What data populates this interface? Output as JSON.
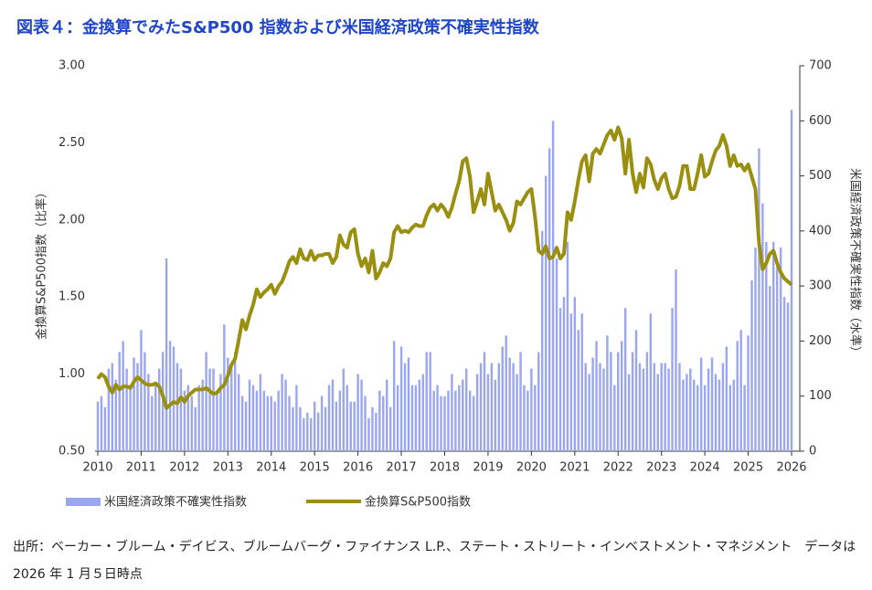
{
  "chart_data": {
    "type": "combo",
    "title": "図表４：金換算でみたS&P500 指数および米国経済政策不確実性指数",
    "ylabel": "金換算S&P500指数（比率）",
    "y2label": "米国経済政策不確実性指数（水準）",
    "source": "出所：ベーカー・ブルーム・デイビス、ブルームバーグ・ファイナンス L.P.、ステート・ストリート・インベストメント・マネジメント　データは 2026 年 1 月５日時点",
    "legend": "bottom",
    "categories": [
      "2010",
      null,
      null,
      null,
      null,
      null,
      null,
      null,
      null,
      null,
      null,
      null,
      "2011",
      null,
      null,
      null,
      null,
      null,
      null,
      null,
      null,
      null,
      null,
      null,
      "2012",
      null,
      null,
      null,
      null,
      null,
      null,
      null,
      null,
      null,
      null,
      null,
      "2013",
      null,
      null,
      null,
      null,
      null,
      null,
      null,
      null,
      null,
      null,
      null,
      "2014",
      null,
      null,
      null,
      null,
      null,
      null,
      null,
      null,
      null,
      null,
      null,
      "2015",
      null,
      null,
      null,
      null,
      null,
      null,
      null,
      null,
      null,
      null,
      null,
      "2016",
      null,
      null,
      null,
      null,
      null,
      null,
      null,
      null,
      null,
      null,
      null,
      "2017",
      null,
      null,
      null,
      null,
      null,
      null,
      null,
      null,
      null,
      null,
      null,
      "2018",
      null,
      null,
      null,
      null,
      null,
      null,
      null,
      null,
      null,
      null,
      null,
      "2019",
      null,
      null,
      null,
      null,
      null,
      null,
      null,
      null,
      null,
      null,
      null,
      "2020",
      null,
      null,
      null,
      null,
      null,
      null,
      null,
      null,
      null,
      null,
      null,
      "2021",
      null,
      null,
      null,
      null,
      null,
      null,
      null,
      null,
      null,
      null,
      null,
      "2022",
      null,
      null,
      null,
      null,
      null,
      null,
      null,
      null,
      null,
      null,
      null,
      "2023",
      null,
      null,
      null,
      null,
      null,
      null,
      null,
      null,
      null,
      null,
      null,
      "2024",
      null,
      null,
      null,
      null,
      null,
      null,
      null,
      null,
      null,
      null,
      null,
      "2025",
      null,
      null,
      null,
      null,
      null,
      null,
      null,
      null,
      null,
      null,
      null,
      "2026"
    ],
    "series": [
      {
        "name": "米国経済政策不確実性指数",
        "type": "bar",
        "axis": "y2",
        "color": "#9aa6f0",
        "values": [
          90,
          100,
          80,
          150,
          160,
          130,
          180,
          200,
          150,
          120,
          170,
          160,
          220,
          180,
          140,
          100,
          120,
          150,
          180,
          350,
          200,
          190,
          160,
          150,
          110,
          120,
          100,
          80,
          120,
          130,
          180,
          150,
          150,
          110,
          140,
          230,
          170,
          150,
          180,
          140,
          100,
          90,
          130,
          120,
          110,
          140,
          110,
          100,
          100,
          90,
          110,
          140,
          130,
          100,
          80,
          120,
          80,
          60,
          70,
          60,
          90,
          70,
          100,
          80,
          120,
          130,
          90,
          110,
          150,
          120,
          90,
          90,
          140,
          130,
          100,
          60,
          80,
          70,
          110,
          100,
          130,
          80,
          200,
          120,
          190,
          160,
          170,
          120,
          120,
          130,
          140,
          180,
          180,
          110,
          120,
          100,
          100,
          110,
          140,
          110,
          120,
          130,
          150,
          110,
          100,
          140,
          160,
          180,
          140,
          160,
          130,
          160,
          190,
          210,
          170,
          160,
          140,
          180,
          120,
          110,
          150,
          120,
          180,
          400,
          500,
          550,
          600,
          350,
          260,
          280,
          380,
          250,
          280,
          220,
          250,
          160,
          140,
          170,
          200,
          160,
          150,
          210,
          180,
          120,
          180,
          200,
          260,
          140,
          180,
          220,
          160,
          150,
          180,
          250,
          160,
          140,
          160,
          160,
          150,
          260,
          330,
          160,
          130,
          140,
          150,
          130,
          120,
          170,
          120,
          150,
          170,
          140,
          130,
          160,
          190,
          120,
          130,
          200,
          220,
          120,
          210,
          310,
          370,
          550,
          450,
          380,
          300,
          380,
          340,
          370,
          280,
          270,
          620
        ]
      },
      {
        "name": "金換算S&P500指数",
        "type": "line",
        "color": "#9a8f0e",
        "values": [
          0.97,
          1.0,
          0.98,
          0.92,
          0.88,
          0.93,
          0.9,
          0.92,
          0.92,
          0.91,
          0.95,
          0.98,
          0.96,
          0.94,
          0.93,
          0.93,
          0.94,
          0.92,
          0.86,
          0.78,
          0.8,
          0.82,
          0.81,
          0.85,
          0.82,
          0.86,
          0.88,
          0.9,
          0.9,
          0.9,
          0.91,
          0.89,
          0.87,
          0.88,
          0.91,
          0.93,
          0.99,
          1.06,
          1.1,
          1.22,
          1.35,
          1.29,
          1.38,
          1.45,
          1.55,
          1.5,
          1.53,
          1.55,
          1.58,
          1.52,
          1.57,
          1.6,
          1.66,
          1.73,
          1.76,
          1.72,
          1.81,
          1.75,
          1.74,
          1.8,
          1.74,
          1.77,
          1.77,
          1.78,
          1.78,
          1.72,
          1.76,
          1.9,
          1.84,
          1.82,
          1.92,
          1.94,
          1.78,
          1.7,
          1.75,
          1.66,
          1.8,
          1.62,
          1.66,
          1.72,
          1.7,
          1.75,
          1.92,
          1.96,
          1.92,
          1.93,
          1.92,
          1.95,
          1.97,
          1.96,
          1.96,
          2.03,
          2.08,
          2.1,
          2.06,
          2.1,
          2.07,
          2.02,
          2.08,
          2.17,
          2.25,
          2.38,
          2.4,
          2.28,
          2.05,
          2.12,
          2.2,
          2.1,
          2.3,
          2.18,
          2.06,
          2.1,
          2.05,
          2.0,
          1.93,
          1.98,
          2.12,
          2.1,
          2.14,
          2.18,
          2.2,
          2.02,
          1.8,
          1.78,
          1.83,
          1.75,
          1.76,
          1.82,
          1.75,
          1.78,
          2.05,
          2.0,
          2.12,
          2.26,
          2.38,
          2.42,
          2.25,
          2.43,
          2.46,
          2.43,
          2.49,
          2.55,
          2.58,
          2.52,
          2.6,
          2.53,
          2.3,
          2.52,
          2.3,
          2.18,
          2.3,
          2.21,
          2.4,
          2.36,
          2.26,
          2.2,
          2.27,
          2.3,
          2.2,
          2.14,
          2.15,
          2.22,
          2.35,
          2.35,
          2.2,
          2.2,
          2.3,
          2.42,
          2.28,
          2.3,
          2.38,
          2.45,
          2.48,
          2.55,
          2.48,
          2.35,
          2.42,
          2.35,
          2.36,
          2.32,
          2.36,
          2.28,
          2.2,
          1.85,
          1.68,
          1.72,
          1.78,
          1.8,
          1.72,
          1.66,
          1.62,
          1.6,
          1.58
        ]
      }
    ],
    "ylim": [
      0.5,
      3.0
    ],
    "yticks": [
      {
        "value": 0.5,
        "label": "0.50"
      },
      {
        "value": 1,
        "label": "1.00"
      },
      {
        "value": 1.5,
        "label": "1.50"
      },
      {
        "value": 2,
        "label": "2.00"
      },
      {
        "value": 2.5,
        "label": "2.50"
      },
      {
        "value": 3,
        "label": "3.00"
      }
    ],
    "y2lim": [
      0,
      700
    ],
    "y2ticks": [
      0,
      100,
      200,
      300,
      400,
      500,
      600,
      700
    ],
    "grid": false
  }
}
